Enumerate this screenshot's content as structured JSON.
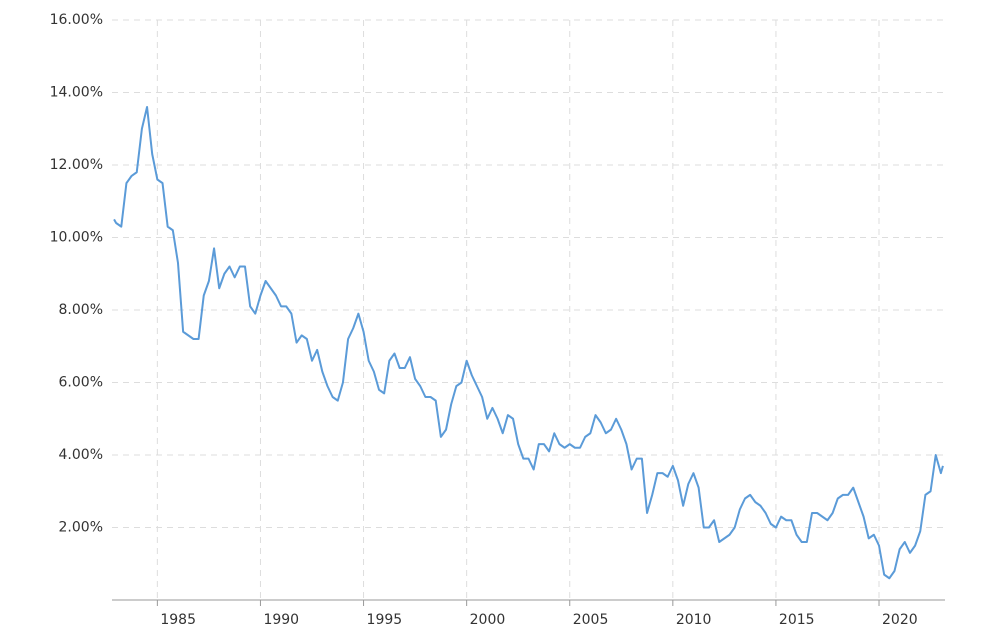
{
  "chart_data": {
    "type": "line",
    "x": [
      1982.9,
      1983.0,
      1983.25,
      1983.5,
      1983.75,
      1984.0,
      1984.25,
      1984.5,
      1984.75,
      1985.0,
      1985.25,
      1985.5,
      1985.75,
      1986.0,
      1986.25,
      1986.5,
      1986.75,
      1987.0,
      1987.25,
      1987.5,
      1987.75,
      1988.0,
      1988.25,
      1988.5,
      1988.75,
      1989.0,
      1989.25,
      1989.5,
      1989.75,
      1990.0,
      1990.25,
      1990.5,
      1990.75,
      1991.0,
      1991.25,
      1991.5,
      1991.75,
      1992.0,
      1992.25,
      1992.5,
      1992.75,
      1993.0,
      1993.25,
      1993.5,
      1993.75,
      1994.0,
      1994.25,
      1994.5,
      1994.75,
      1995.0,
      1995.25,
      1995.5,
      1995.75,
      1996.0,
      1996.25,
      1996.5,
      1996.75,
      1997.0,
      1997.25,
      1997.5,
      1997.75,
      1998.0,
      1998.25,
      1998.5,
      1998.75,
      1999.0,
      1999.25,
      1999.5,
      1999.75,
      2000.0,
      2000.25,
      2000.5,
      2000.75,
      2001.0,
      2001.25,
      2001.5,
      2001.75,
      2002.0,
      2002.25,
      2002.5,
      2002.75,
      2003.0,
      2003.25,
      2003.5,
      2003.75,
      2004.0,
      2004.25,
      2004.5,
      2004.75,
      2005.0,
      2005.25,
      2005.5,
      2005.75,
      2006.0,
      2006.25,
      2006.5,
      2006.75,
      2007.0,
      2007.25,
      2007.5,
      2007.75,
      2008.0,
      2008.25,
      2008.5,
      2008.75,
      2009.0,
      2009.25,
      2009.5,
      2009.75,
      2010.0,
      2010.25,
      2010.5,
      2010.75,
      2011.0,
      2011.25,
      2011.5,
      2011.75,
      2012.0,
      2012.25,
      2012.5,
      2012.75,
      2013.0,
      2013.25,
      2013.5,
      2013.75,
      2014.0,
      2014.25,
      2014.5,
      2014.75,
      2015.0,
      2015.25,
      2015.5,
      2015.75,
      2016.0,
      2016.25,
      2016.5,
      2016.75,
      2017.0,
      2017.25,
      2017.5,
      2017.75,
      2018.0,
      2018.25,
      2018.5,
      2018.75,
      2019.0,
      2019.25,
      2019.5,
      2019.75,
      2020.0,
      2020.25,
      2020.5,
      2020.75,
      2021.0,
      2021.25,
      2021.5,
      2021.75,
      2022.0,
      2022.25,
      2022.5,
      2022.75,
      2023.0,
      2023.1
    ],
    "series": [
      {
        "color": "#5b9bd8",
        "values": [
          10.5,
          10.4,
          10.3,
          11.5,
          11.7,
          11.8,
          13.0,
          13.6,
          12.3,
          11.6,
          11.5,
          10.3,
          10.2,
          9.3,
          7.4,
          7.3,
          7.2,
          7.2,
          8.4,
          8.8,
          9.7,
          8.6,
          9.0,
          9.2,
          8.9,
          9.2,
          9.2,
          8.1,
          7.9,
          8.4,
          8.8,
          8.6,
          8.4,
          8.1,
          8.1,
          7.9,
          7.1,
          7.3,
          7.2,
          6.6,
          6.9,
          6.3,
          5.9,
          5.6,
          5.5,
          6.0,
          7.2,
          7.5,
          7.9,
          7.4,
          6.6,
          6.3,
          5.8,
          5.7,
          6.6,
          6.8,
          6.4,
          6.4,
          6.7,
          6.1,
          5.9,
          5.6,
          5.6,
          5.5,
          4.5,
          4.7,
          5.4,
          5.9,
          6.0,
          6.6,
          6.2,
          5.9,
          5.6,
          5.0,
          5.3,
          5.0,
          4.6,
          5.1,
          5.0,
          4.3,
          3.9,
          3.9,
          3.6,
          4.3,
          4.3,
          4.1,
          4.6,
          4.3,
          4.2,
          4.3,
          4.2,
          4.2,
          4.5,
          4.6,
          5.1,
          4.9,
          4.6,
          4.7,
          5.0,
          4.7,
          4.3,
          3.6,
          3.9,
          3.9,
          2.4,
          2.9,
          3.5,
          3.5,
          3.4,
          3.7,
          3.3,
          2.6,
          3.2,
          3.5,
          3.1,
          2.0,
          2.0,
          2.2,
          1.6,
          1.7,
          1.8,
          2.0,
          2.5,
          2.8,
          2.9,
          2.7,
          2.6,
          2.4,
          2.1,
          2.0,
          2.3,
          2.2,
          2.2,
          1.8,
          1.6,
          1.6,
          2.4,
          2.4,
          2.3,
          2.2,
          2.4,
          2.8,
          2.9,
          2.9,
          3.1,
          2.7,
          2.3,
          1.7,
          1.8,
          1.5,
          0.7,
          0.6,
          0.8,
          1.4,
          1.6,
          1.3,
          1.5,
          1.9,
          2.9,
          3.0,
          4.0,
          3.5,
          3.7
        ]
      }
    ],
    "xlim": [
      1982.8,
      2023.2
    ],
    "xticks": [
      1985,
      1990,
      1995,
      2000,
      2005,
      2010,
      2015,
      2020
    ],
    "ylim": [
      0,
      16
    ],
    "yticks": [
      {
        "value": 2,
        "label": "2.00%"
      },
      {
        "value": 4,
        "label": "4.00%"
      },
      {
        "value": 6,
        "label": "6.00%"
      },
      {
        "value": 8,
        "label": "8.00%"
      },
      {
        "value": 10,
        "label": "10.00%"
      },
      {
        "value": 12,
        "label": "12.00%"
      },
      {
        "value": 14,
        "label": "14.00%"
      },
      {
        "value": 16,
        "label": "16.00%"
      }
    ],
    "grid": true
  }
}
